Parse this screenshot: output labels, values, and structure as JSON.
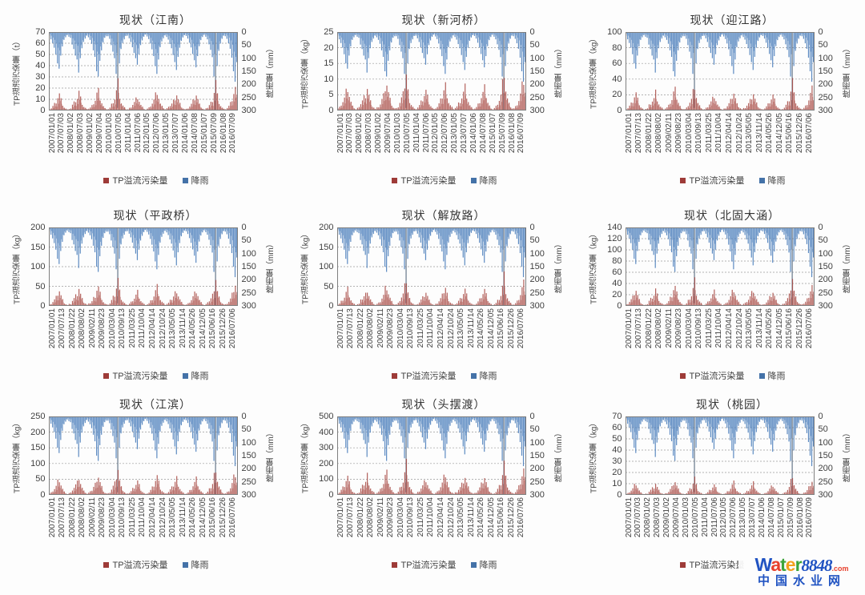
{
  "page": {
    "background": "#fdfdfd"
  },
  "watermark": {
    "brand_letters": [
      {
        "ch": "W",
        "color": "#2053c2"
      },
      {
        "ch": "a",
        "color": "#e8402c"
      },
      {
        "ch": "t",
        "color": "#3ca43a"
      },
      {
        "ch": "e",
        "color": "#f3a11d"
      },
      {
        "ch": "r",
        "color": "#3ca43a"
      }
    ],
    "brand_digits": "8848",
    "brand_digits_color": "#2053c2",
    "dotcom": ".com",
    "dotcom_color": "#e8402c",
    "subtitle": "中国水业网",
    "subtitle_color": "#2053c2"
  },
  "chart_data": {
    "type": "bar",
    "orientation": "dual-axis-time-series",
    "legend": [
      {
        "label": "TP溢流污染量",
        "color": "#9e3b38"
      },
      {
        "label": "降雨",
        "color": "#4472a8"
      }
    ],
    "legend_position": "bottom",
    "grid": "dashed-horizontal",
    "y2label": "降雨量（mm）",
    "y2lim": [
      0,
      300
    ],
    "y2_ticks": [
      0,
      50,
      100,
      150,
      200,
      250,
      300
    ],
    "y2_inverted": true,
    "bar_colors": {
      "tp": "#a6453f",
      "rain": "#4f81bd",
      "rain_extreme": "#5a6b7f"
    },
    "x_label_sets": {
      "A": [
        "2007/01/01",
        "2007/07/03",
        "2008/01/02",
        "2008/07/03",
        "2009/01/02",
        "2009/07/04",
        "2010/01/03",
        "2010/07/05",
        "2011/01/04",
        "2011/07/06",
        "2012/01/05",
        "2012/07/06",
        "2013/01/05",
        "2013/07/07",
        "2014/01/06",
        "2014/07/08",
        "2015/01/07",
        "2015/07/09",
        "2016/01/08",
        "2016/07/09"
      ],
      "B": [
        "2007/01/01",
        "2007/07/13",
        "2008/01/22",
        "2008/08/02",
        "2009/02/11",
        "2009/08/23",
        "2010/03/04",
        "2010/09/13",
        "2011/03/25",
        "2011/10/04",
        "2012/04/14",
        "2012/10/24",
        "2013/05/05",
        "2013/11/14",
        "2014/05/26",
        "2014/12/05",
        "2015/06/16",
        "2015/12/26",
        "2016/07/06"
      ]
    },
    "rain_mm": [
      15,
      28,
      42,
      60,
      85,
      120,
      140,
      90,
      55,
      30,
      20,
      12,
      18,
      22,
      48,
      65,
      90,
      105,
      155,
      100,
      62,
      38,
      25,
      14,
      20,
      30,
      45,
      70,
      95,
      150,
      170,
      110,
      70,
      40,
      22,
      16,
      16,
      26,
      50,
      75,
      100,
      160,
      290,
      120,
      65,
      42,
      28,
      15,
      14,
      24,
      38,
      58,
      80,
      100,
      125,
      85,
      50,
      32,
      18,
      10,
      17,
      27,
      44,
      66,
      92,
      130,
      160,
      105,
      58,
      36,
      24,
      13,
      19,
      29,
      46,
      62,
      88,
      115,
      145,
      95,
      60,
      34,
      21,
      12,
      15,
      25,
      41,
      59,
      84,
      108,
      135,
      92,
      54,
      31,
      19,
      11,
      18,
      28,
      47,
      68,
      96,
      170,
      300,
      130,
      72,
      44,
      26,
      14,
      16,
      26,
      43,
      64,
      98,
      150,
      190,
      115
    ],
    "tp_norm": [
      0.05,
      0.08,
      0.15,
      0.22,
      0.3,
      0.45,
      0.55,
      0.35,
      0.2,
      0.1,
      0.06,
      0.03,
      0.06,
      0.07,
      0.18,
      0.25,
      0.33,
      0.4,
      0.6,
      0.38,
      0.22,
      0.12,
      0.08,
      0.04,
      0.07,
      0.1,
      0.16,
      0.27,
      0.36,
      0.58,
      0.65,
      0.42,
      0.26,
      0.14,
      0.07,
      0.05,
      0.05,
      0.09,
      0.19,
      0.29,
      0.38,
      0.62,
      0.88,
      0.46,
      0.24,
      0.15,
      0.09,
      0.04,
      0.04,
      0.08,
      0.13,
      0.21,
      0.28,
      0.38,
      0.48,
      0.32,
      0.18,
      0.11,
      0.06,
      0.03,
      0.06,
      0.09,
      0.16,
      0.24,
      0.34,
      0.5,
      0.62,
      0.4,
      0.21,
      0.13,
      0.08,
      0.04,
      0.07,
      0.1,
      0.17,
      0.23,
      0.32,
      0.44,
      0.56,
      0.36,
      0.22,
      0.12,
      0.07,
      0.04,
      0.05,
      0.08,
      0.14,
      0.21,
      0.31,
      0.41,
      0.52,
      0.35,
      0.19,
      0.11,
      0.06,
      0.03,
      0.06,
      0.1,
      0.18,
      0.26,
      0.37,
      0.66,
      1.0,
      0.5,
      0.28,
      0.16,
      0.09,
      0.05,
      0.05,
      0.09,
      0.15,
      0.24,
      0.38,
      0.58,
      0.73,
      0.44
    ],
    "charts": [
      {
        "title": "现状（江南）",
        "ylabel": "TP溢流污染量（t）",
        "unit": "t",
        "ylim": [
          0,
          70
        ],
        "yticks": [
          0,
          10,
          20,
          30,
          40,
          50,
          60,
          70
        ],
        "tp_max": 27,
        "xlabels": "A"
      },
      {
        "title": "现状（新河桥）",
        "ylabel": "TP溢流污染量（kg）",
        "unit": "kg",
        "ylim": [
          0,
          25
        ],
        "yticks": [
          0,
          5,
          10,
          15,
          20,
          25
        ],
        "tp_max": 13,
        "xlabels": "A"
      },
      {
        "title": "现状（迎江路）",
        "ylabel": "TP溢流污染量（kg）",
        "unit": "kg",
        "ylim": [
          0,
          100
        ],
        "yticks": [
          0,
          20,
          40,
          60,
          80,
          100
        ],
        "tp_max": 38,
        "xlabels": "B"
      },
      {
        "title": "现状（平政桥）",
        "ylabel": "TP溢流污染量（kg）",
        "unit": "kg",
        "ylim": [
          0,
          200
        ],
        "yticks": [
          0,
          50,
          100,
          150,
          200
        ],
        "tp_max": 75,
        "xlabels": "B"
      },
      {
        "title": "现状（解放路）",
        "ylabel": "TP溢流污染量（kg）",
        "unit": "kg",
        "ylim": [
          0,
          200
        ],
        "yticks": [
          0,
          50,
          100,
          150,
          200
        ],
        "tp_max": 75,
        "xlabels": "B"
      },
      {
        "title": "现状（北固大涵）",
        "ylabel": "TP溢流污染量（kg）",
        "unit": "kg",
        "ylim": [
          0,
          140
        ],
        "yticks": [
          0,
          20,
          40,
          60,
          80,
          100,
          120,
          140
        ],
        "tp_max": 50,
        "xlabels": "B"
      },
      {
        "title": "现状（江滨）",
        "ylabel": "TP溢流污染量（kg）",
        "unit": "kg",
        "ylim": [
          0,
          250
        ],
        "yticks": [
          0,
          50,
          100,
          150,
          200,
          250
        ],
        "tp_max": 95,
        "xlabels": "B"
      },
      {
        "title": "现状（头摆渡）",
        "ylabel": "TP溢流污染量（kg）",
        "unit": "kg",
        "ylim": [
          0,
          500
        ],
        "yticks": [
          0,
          100,
          200,
          300,
          400,
          500
        ],
        "tp_max": 210,
        "xlabels": "B"
      },
      {
        "title": "现状（桃园）",
        "ylabel": "TP溢流污染量（kg）",
        "unit": "kg",
        "ylim": [
          0,
          70
        ],
        "yticks": [
          0,
          10,
          20,
          30,
          40,
          50,
          60,
          70
        ],
        "tp_max": 18,
        "xlabels": "A"
      }
    ]
  }
}
